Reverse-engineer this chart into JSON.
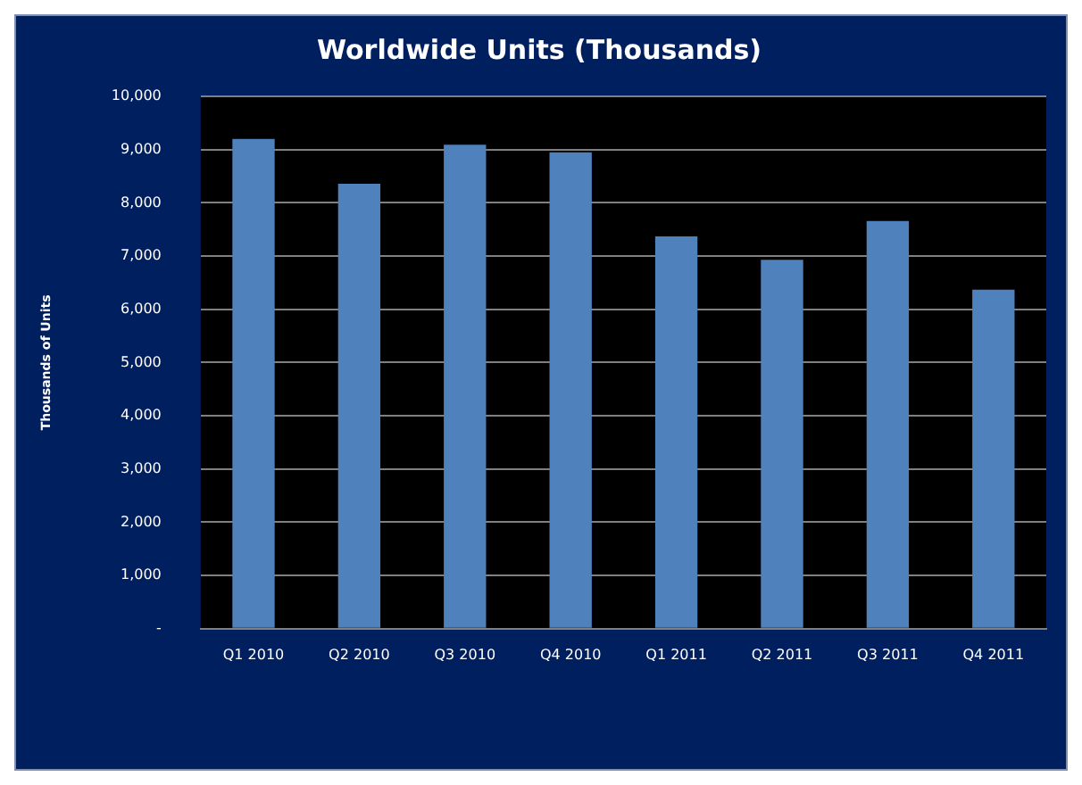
{
  "chart_data": {
    "type": "bar",
    "title": "Worldwide Units (Thousands)",
    "ylabel": "Thousands of Units",
    "categories": [
      "Q1 2010",
      "Q2 2010",
      "Q3 2010",
      "Q4 2010",
      "Q1 2011",
      "Q2 2011",
      "Q3 2011",
      "Q4 2011"
    ],
    "values": [
      9200,
      8360,
      9090,
      8950,
      7370,
      6930,
      7660,
      6370
    ],
    "color": "#4f81bd",
    "ylim": [
      0,
      10000
    ],
    "yticks": [
      {
        "value": 0,
        "label": "-"
      },
      {
        "value": 1000,
        "label": "1,000"
      },
      {
        "value": 2000,
        "label": "2,000"
      },
      {
        "value": 3000,
        "label": "3,000"
      },
      {
        "value": 4000,
        "label": "4,000"
      },
      {
        "value": 5000,
        "label": "5,000"
      },
      {
        "value": 6000,
        "label": "6,000"
      },
      {
        "value": 7000,
        "label": "7,000"
      },
      {
        "value": 8000,
        "label": "8,000"
      },
      {
        "value": 9000,
        "label": "9,000"
      },
      {
        "value": 10000,
        "label": "10,000"
      }
    ],
    "grid": "y",
    "legend": false
  }
}
